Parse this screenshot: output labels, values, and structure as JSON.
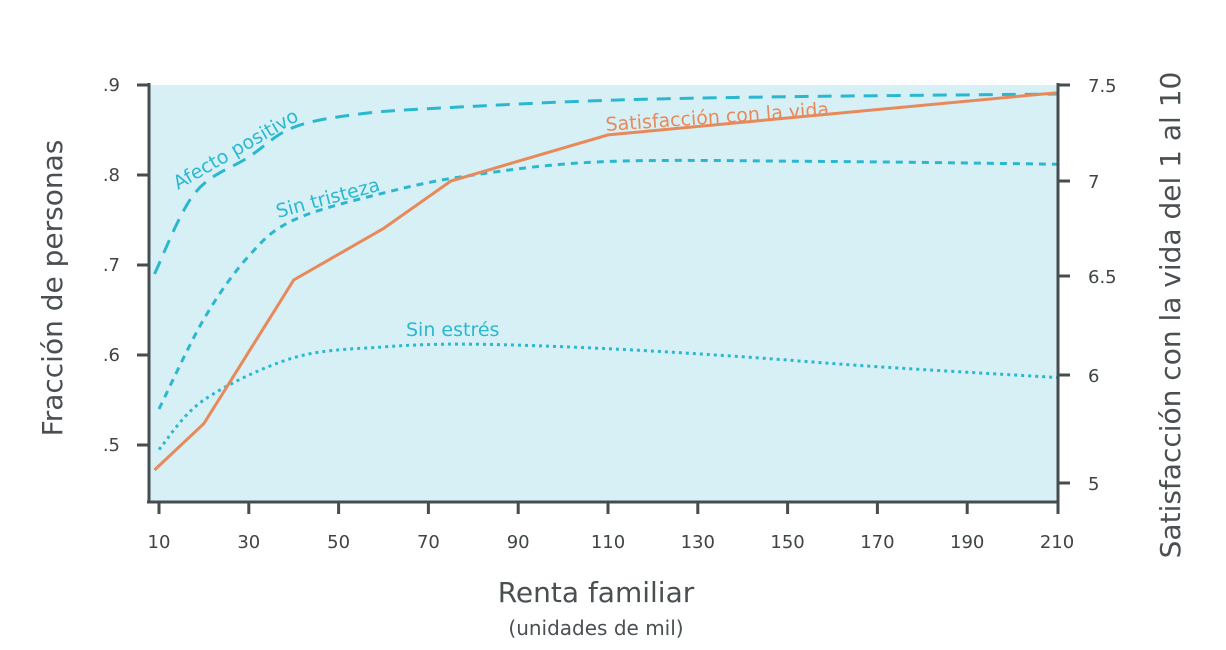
{
  "chart_data": {
    "type": "line",
    "title": "",
    "xlabel": "Renta familiar",
    "xlabel_sub": "(unidades de mil)",
    "ylabel": "Fracción de personas",
    "ylabel_right": "Satisfacción con la vida del 1 al 10",
    "xlim": [
      8,
      210
    ],
    "ylim": [
      0.435,
      0.9
    ],
    "ylim_right": [
      4.9,
      7.5
    ],
    "grid": false,
    "legend": "inline labels",
    "background_color": "#d7f0f5",
    "x_ticks": [
      10,
      30,
      50,
      70,
      90,
      110,
      130,
      150,
      170,
      190,
      210
    ],
    "x_tick_labels": [
      "10",
      "30",
      "50",
      "70",
      "90",
      "110",
      "130",
      "150",
      "170",
      "190",
      "210"
    ],
    "y_ticks": [
      0.5,
      0.6,
      0.7,
      0.8,
      0.9
    ],
    "y_tick_labels": [
      ".5",
      ".6",
      ".7",
      ".8",
      ".9"
    ],
    "y_right_ticks": [
      5,
      6,
      6.5,
      7,
      7.5
    ],
    "y_right_tick_labels": [
      "5",
      "6",
      "6.5",
      "7",
      "7.5"
    ],
    "series": [
      {
        "name": "Afecto positivo",
        "axis": "left",
        "style": "dashed",
        "color": "#2bb8cf",
        "x": [
          9,
          18,
          30,
          40,
          55,
          75,
          110,
          150,
          210
        ],
        "values": [
          0.69,
          0.78,
          0.82,
          0.853,
          0.868,
          0.875,
          0.883,
          0.887,
          0.89
        ]
      },
      {
        "name": "Sin tristeza",
        "axis": "left",
        "style": "short-dashed",
        "color": "#2bb8cf",
        "x": [
          10,
          20,
          30,
          40,
          60,
          80,
          110,
          160,
          210
        ],
        "values": [
          0.54,
          0.64,
          0.71,
          0.75,
          0.78,
          0.8,
          0.815,
          0.815,
          0.812
        ]
      },
      {
        "name": "Sin estrés",
        "axis": "left",
        "style": "dotted",
        "color": "#2bb8cf",
        "x": [
          10,
          20,
          40,
          60,
          80,
          110,
          140,
          170,
          210
        ],
        "values": [
          0.495,
          0.55,
          0.597,
          0.609,
          0.612,
          0.607,
          0.598,
          0.587,
          0.575
        ]
      },
      {
        "name": "Satisfacción con la vida",
        "axis": "right",
        "style": "solid",
        "color": "#e8895c",
        "x": [
          9,
          20,
          40,
          60,
          75,
          110,
          210
        ],
        "values": [
          5.12,
          5.55,
          6.48,
          6.75,
          7.0,
          7.24,
          7.46
        ]
      }
    ]
  }
}
